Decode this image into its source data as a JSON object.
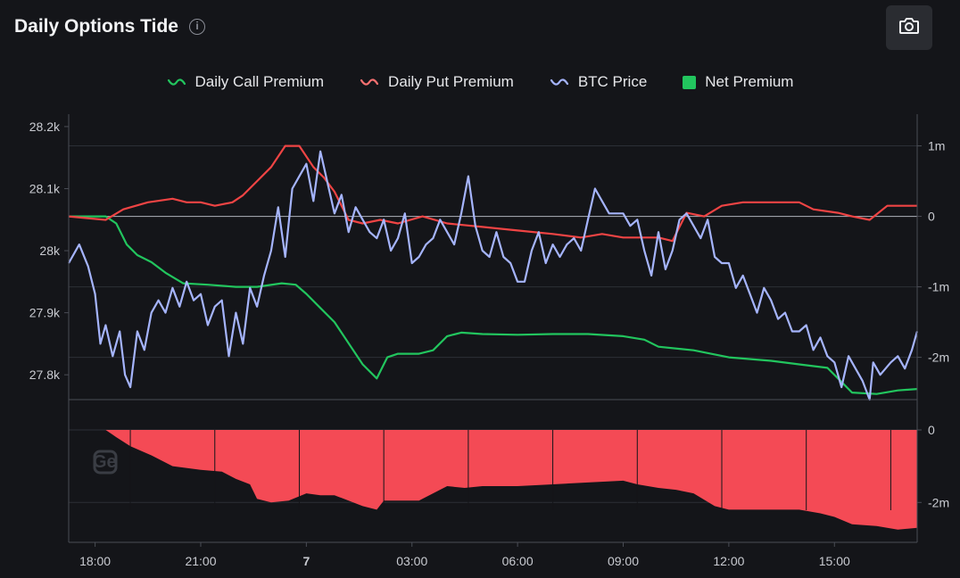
{
  "header": {
    "title": "Daily Options Tide",
    "info_icon": "info-icon",
    "camera_icon": "camera-icon"
  },
  "legend": [
    {
      "label": "Daily Call Premium",
      "color": "#22c55e",
      "marker": "wave"
    },
    {
      "label": "Daily Put Premium",
      "color": "#ef4444",
      "marker": "wave"
    },
    {
      "label": "BTC Price",
      "color": "#a5b4fc",
      "marker": "wave"
    },
    {
      "label": "Net Premium",
      "color": "#22c55e",
      "marker": "square"
    }
  ],
  "watermark": "Ge",
  "chart_data": {
    "type": "line",
    "x": [
      "18:00",
      "21:00",
      "7",
      "03:00",
      "06:00",
      "09:00",
      "12:00",
      "15:00"
    ],
    "x_hours": [
      0,
      3,
      6,
      9,
      12,
      15,
      18,
      21
    ],
    "x_range_hours": [
      -0.75,
      23.35
    ],
    "left_axis": {
      "ticks": [
        "28.2k",
        "28.1k",
        "28k",
        "27.9k",
        "27.8k"
      ],
      "tick_values": [
        28200,
        28100,
        28000,
        27900,
        27800
      ],
      "range": [
        27760,
        28220
      ]
    },
    "right_axis": {
      "ticks": [
        "1m",
        "0",
        "-1m",
        "-2m"
      ],
      "tick_values": [
        1,
        0,
        -1,
        -2
      ],
      "range": [
        -2.6,
        1.45
      ]
    },
    "lower_axis": {
      "ticks": [
        "0",
        "-2m"
      ],
      "tick_values": [
        0,
        -2
      ],
      "range": [
        -3.1,
        0
      ]
    },
    "series": [
      {
        "name": "Daily Call Premium",
        "color": "#22c55e",
        "axis": "right",
        "points": [
          [
            -0.75,
            0
          ],
          [
            0.3,
            0
          ],
          [
            0.6,
            -0.1
          ],
          [
            0.9,
            -0.4
          ],
          [
            1.2,
            -0.55
          ],
          [
            1.6,
            -0.65
          ],
          [
            2.0,
            -0.8
          ],
          [
            2.5,
            -0.95
          ],
          [
            3.2,
            -0.97
          ],
          [
            4.0,
            -1.0
          ],
          [
            4.6,
            -1.0
          ],
          [
            5.3,
            -0.95
          ],
          [
            5.7,
            -0.97
          ],
          [
            6.0,
            -1.1
          ],
          [
            6.4,
            -1.3
          ],
          [
            6.8,
            -1.5
          ],
          [
            7.2,
            -1.8
          ],
          [
            7.6,
            -2.1
          ],
          [
            8.0,
            -2.3
          ],
          [
            8.3,
            -2.0
          ],
          [
            8.6,
            -1.95
          ],
          [
            9.2,
            -1.95
          ],
          [
            9.6,
            -1.9
          ],
          [
            10.0,
            -1.7
          ],
          [
            10.4,
            -1.65
          ],
          [
            11.0,
            -1.67
          ],
          [
            12.0,
            -1.68
          ],
          [
            13.0,
            -1.67
          ],
          [
            14.0,
            -1.67
          ],
          [
            15.0,
            -1.7
          ],
          [
            15.6,
            -1.75
          ],
          [
            16.0,
            -1.85
          ],
          [
            17.0,
            -1.9
          ],
          [
            18.0,
            -2.0
          ],
          [
            19.2,
            -2.05
          ],
          [
            20.0,
            -2.1
          ],
          [
            20.8,
            -2.15
          ],
          [
            21.2,
            -2.35
          ],
          [
            21.5,
            -2.5
          ],
          [
            22.2,
            -2.52
          ],
          [
            22.8,
            -2.47
          ],
          [
            23.35,
            -2.45
          ]
        ]
      },
      {
        "name": "Daily Put Premium",
        "color": "#ef4444",
        "axis": "right",
        "points": [
          [
            -0.75,
            0
          ],
          [
            0.3,
            -0.05
          ],
          [
            0.8,
            0.1
          ],
          [
            1.5,
            0.2
          ],
          [
            2.2,
            0.25
          ],
          [
            2.6,
            0.2
          ],
          [
            3.0,
            0.2
          ],
          [
            3.4,
            0.15
          ],
          [
            3.9,
            0.2
          ],
          [
            4.2,
            0.3
          ],
          [
            4.6,
            0.5
          ],
          [
            5.0,
            0.7
          ],
          [
            5.4,
            1.0
          ],
          [
            5.8,
            1.0
          ],
          [
            6.2,
            0.7
          ],
          [
            6.5,
            0.55
          ],
          [
            6.8,
            0.35
          ],
          [
            7.2,
            -0.05
          ],
          [
            7.6,
            -0.1
          ],
          [
            8.1,
            -0.05
          ],
          [
            8.6,
            -0.1
          ],
          [
            9.3,
            0.0
          ],
          [
            10.0,
            -0.1
          ],
          [
            11.0,
            -0.15
          ],
          [
            12.0,
            -0.2
          ],
          [
            13.0,
            -0.25
          ],
          [
            13.8,
            -0.3
          ],
          [
            14.4,
            -0.25
          ],
          [
            15.0,
            -0.3
          ],
          [
            16.0,
            -0.3
          ],
          [
            16.4,
            -0.35
          ],
          [
            16.8,
            0.05
          ],
          [
            17.3,
            0.0
          ],
          [
            17.8,
            0.15
          ],
          [
            18.4,
            0.2
          ],
          [
            19.5,
            0.2
          ],
          [
            20.0,
            0.2
          ],
          [
            20.4,
            0.1
          ],
          [
            21.1,
            0.05
          ],
          [
            21.5,
            0.0
          ],
          [
            22.0,
            -0.05
          ],
          [
            22.5,
            0.15
          ],
          [
            23.35,
            0.15
          ]
        ]
      },
      {
        "name": "BTC Price",
        "color": "#a5b4fc",
        "axis": "left",
        "points": [
          [
            -0.75,
            27980
          ],
          [
            -0.45,
            28010
          ],
          [
            -0.2,
            27975
          ],
          [
            0.0,
            27930
          ],
          [
            0.15,
            27850
          ],
          [
            0.3,
            27880
          ],
          [
            0.5,
            27830
          ],
          [
            0.7,
            27870
          ],
          [
            0.85,
            27800
          ],
          [
            1.0,
            27780
          ],
          [
            1.2,
            27870
          ],
          [
            1.4,
            27840
          ],
          [
            1.6,
            27900
          ],
          [
            1.8,
            27920
          ],
          [
            2.0,
            27900
          ],
          [
            2.2,
            27940
          ],
          [
            2.4,
            27910
          ],
          [
            2.6,
            27950
          ],
          [
            2.8,
            27920
          ],
          [
            3.0,
            27930
          ],
          [
            3.2,
            27880
          ],
          [
            3.4,
            27910
          ],
          [
            3.6,
            27920
          ],
          [
            3.8,
            27830
          ],
          [
            4.0,
            27900
          ],
          [
            4.2,
            27850
          ],
          [
            4.4,
            27940
          ],
          [
            4.6,
            27910
          ],
          [
            4.8,
            27960
          ],
          [
            5.0,
            28000
          ],
          [
            5.2,
            28070
          ],
          [
            5.4,
            27990
          ],
          [
            5.6,
            28100
          ],
          [
            5.8,
            28120
          ],
          [
            6.0,
            28140
          ],
          [
            6.2,
            28080
          ],
          [
            6.4,
            28160
          ],
          [
            6.6,
            28110
          ],
          [
            6.8,
            28060
          ],
          [
            7.0,
            28090
          ],
          [
            7.2,
            28030
          ],
          [
            7.4,
            28070
          ],
          [
            7.6,
            28050
          ],
          [
            7.8,
            28030
          ],
          [
            8.0,
            28020
          ],
          [
            8.2,
            28050
          ],
          [
            8.4,
            28000
          ],
          [
            8.6,
            28020
          ],
          [
            8.8,
            28060
          ],
          [
            9.0,
            27980
          ],
          [
            9.2,
            27990
          ],
          [
            9.4,
            28010
          ],
          [
            9.6,
            28020
          ],
          [
            9.8,
            28050
          ],
          [
            10.0,
            28030
          ],
          [
            10.2,
            28010
          ],
          [
            10.4,
            28060
          ],
          [
            10.6,
            28120
          ],
          [
            10.8,
            28040
          ],
          [
            11.0,
            28000
          ],
          [
            11.2,
            27990
          ],
          [
            11.4,
            28030
          ],
          [
            11.6,
            27990
          ],
          [
            11.8,
            27980
          ],
          [
            12.0,
            27950
          ],
          [
            12.2,
            27950
          ],
          [
            12.4,
            28000
          ],
          [
            12.6,
            28030
          ],
          [
            12.8,
            27980
          ],
          [
            13.0,
            28010
          ],
          [
            13.2,
            27990
          ],
          [
            13.4,
            28010
          ],
          [
            13.6,
            28020
          ],
          [
            13.8,
            28000
          ],
          [
            14.0,
            28050
          ],
          [
            14.2,
            28100
          ],
          [
            14.4,
            28080
          ],
          [
            14.6,
            28060
          ],
          [
            14.8,
            28060
          ],
          [
            15.0,
            28060
          ],
          [
            15.2,
            28040
          ],
          [
            15.4,
            28050
          ],
          [
            15.6,
            28000
          ],
          [
            15.8,
            27960
          ],
          [
            16.0,
            28030
          ],
          [
            16.2,
            27970
          ],
          [
            16.4,
            28000
          ],
          [
            16.6,
            28050
          ],
          [
            16.8,
            28060
          ],
          [
            17.0,
            28040
          ],
          [
            17.2,
            28020
          ],
          [
            17.4,
            28050
          ],
          [
            17.6,
            27990
          ],
          [
            17.8,
            27980
          ],
          [
            18.0,
            27980
          ],
          [
            18.2,
            27940
          ],
          [
            18.4,
            27960
          ],
          [
            18.6,
            27930
          ],
          [
            18.8,
            27900
          ],
          [
            19.0,
            27940
          ],
          [
            19.2,
            27920
          ],
          [
            19.4,
            27890
          ],
          [
            19.6,
            27900
          ],
          [
            19.8,
            27870
          ],
          [
            20.0,
            27870
          ],
          [
            20.2,
            27880
          ],
          [
            20.4,
            27840
          ],
          [
            20.6,
            27860
          ],
          [
            20.8,
            27830
          ],
          [
            21.0,
            27820
          ],
          [
            21.2,
            27780
          ],
          [
            21.4,
            27830
          ],
          [
            21.6,
            27810
          ],
          [
            21.8,
            27790
          ],
          [
            22.0,
            27760
          ],
          [
            22.1,
            27820
          ],
          [
            22.3,
            27800
          ],
          [
            22.6,
            27820
          ],
          [
            22.8,
            27830
          ],
          [
            23.0,
            27810
          ],
          [
            23.2,
            27840
          ],
          [
            23.35,
            27870
          ]
        ]
      },
      {
        "name": "Net Premium",
        "color": "#22c55e",
        "negative_color": "#f44a55",
        "axis": "lower",
        "type": "area",
        "points": [
          [
            -0.75,
            0
          ],
          [
            0.3,
            0
          ],
          [
            0.6,
            -0.2
          ],
          [
            1.0,
            -0.45
          ],
          [
            1.6,
            -0.7
          ],
          [
            2.2,
            -1.0
          ],
          [
            3.0,
            -1.1
          ],
          [
            3.6,
            -1.15
          ],
          [
            4.0,
            -1.35
          ],
          [
            4.4,
            -1.5
          ],
          [
            4.6,
            -1.9
          ],
          [
            5.0,
            -2.0
          ],
          [
            5.5,
            -1.95
          ],
          [
            6.0,
            -1.75
          ],
          [
            6.4,
            -1.8
          ],
          [
            6.8,
            -1.8
          ],
          [
            7.2,
            -1.95
          ],
          [
            7.6,
            -2.1
          ],
          [
            8.0,
            -2.2
          ],
          [
            8.2,
            -1.95
          ],
          [
            8.6,
            -1.95
          ],
          [
            9.2,
            -1.95
          ],
          [
            9.6,
            -1.75
          ],
          [
            10.0,
            -1.55
          ],
          [
            10.5,
            -1.6
          ],
          [
            11.0,
            -1.55
          ],
          [
            12.0,
            -1.55
          ],
          [
            13.0,
            -1.5
          ],
          [
            14.0,
            -1.45
          ],
          [
            15.0,
            -1.4
          ],
          [
            15.4,
            -1.5
          ],
          [
            16.0,
            -1.6
          ],
          [
            16.5,
            -1.65
          ],
          [
            17.0,
            -1.75
          ],
          [
            17.6,
            -2.1
          ],
          [
            18.0,
            -2.2
          ],
          [
            19.0,
            -2.2
          ],
          [
            20.0,
            -2.2
          ],
          [
            20.6,
            -2.3
          ],
          [
            21.0,
            -2.4
          ],
          [
            21.5,
            -2.6
          ],
          [
            22.2,
            -2.65
          ],
          [
            22.8,
            -2.75
          ],
          [
            23.35,
            -2.7
          ]
        ]
      }
    ]
  }
}
